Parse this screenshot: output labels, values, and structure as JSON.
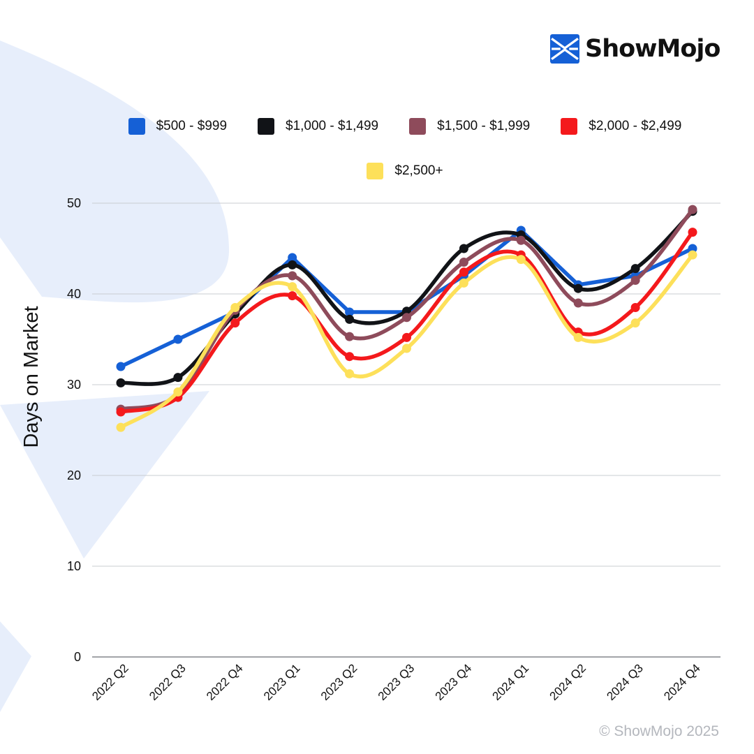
{
  "brand": {
    "name": "ShowMojo",
    "icon": "showmojo-logo-icon",
    "color": "#1560d6"
  },
  "footer": {
    "copyright": "© ShowMojo 2025"
  },
  "chart_data": {
    "type": "line",
    "title": "",
    "xlabel": "",
    "ylabel": "Days on Market",
    "ylim": [
      0,
      50
    ],
    "yticks": [
      0,
      10,
      20,
      30,
      40,
      50
    ],
    "grid": true,
    "legend_position": "top",
    "categories": [
      "2022 Q2",
      "2022 Q3",
      "2022 Q4",
      "2023 Q1",
      "2023 Q2",
      "2023 Q3",
      "2023 Q4",
      "2024 Q1",
      "2024 Q2",
      "2024 Q3",
      "2024 Q4"
    ],
    "series": [
      {
        "name": "$500 - $999",
        "color": "#1560d6",
        "smooth": false,
        "values": [
          32,
          35,
          38,
          44,
          38,
          38,
          42,
          47,
          41,
          42,
          45
        ]
      },
      {
        "name": "$1,000 - $1,499",
        "color": "#111317",
        "smooth": true,
        "values": [
          30.2,
          30.8,
          37.8,
          43.2,
          37.2,
          38.1,
          45,
          46.5,
          40.6,
          42.8,
          49.1
        ]
      },
      {
        "name": "$1,500 - $1,999",
        "color": "#8e4b5b",
        "smooth": true,
        "values": [
          27.3,
          28.9,
          38.2,
          42,
          35.3,
          37.4,
          43.5,
          45.9,
          39,
          41.5,
          49.3
        ]
      },
      {
        "name": "$2,000 - $2,499",
        "color": "#f4191c",
        "smooth": true,
        "values": [
          27,
          28.6,
          36.8,
          39.8,
          33.1,
          35.2,
          42.4,
          44.3,
          35.8,
          38.5,
          46.8
        ]
      },
      {
        "name": "$2,500+",
        "color": "#fde05a",
        "smooth": true,
        "values": [
          25.3,
          29.2,
          38.5,
          40.8,
          31.2,
          34,
          41.2,
          43.8,
          35.2,
          36.8,
          44.3
        ]
      }
    ]
  }
}
